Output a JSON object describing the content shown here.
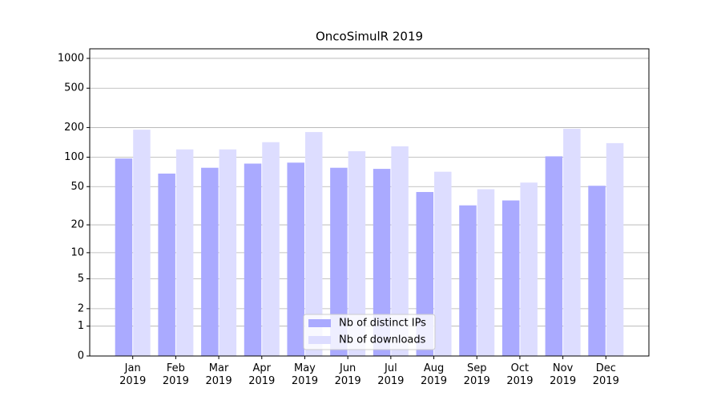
{
  "chart_data": {
    "type": "bar",
    "title": "OncoSimulR 2019",
    "categories": [
      "Jan\n2019",
      "Feb\n2019",
      "Mar\n2019",
      "Apr\n2019",
      "May\n2019",
      "Jun\n2019",
      "Jul\n2019",
      "Aug\n2019",
      "Sep\n2019",
      "Oct\n2019",
      "Nov\n2019",
      "Dec\n2019"
    ],
    "series": [
      {
        "name": "Nb of distinct IPs",
        "color": "#aaaaff",
        "values": [
          97,
          68,
          78,
          86,
          88,
          78,
          76,
          44,
          32,
          36,
          102,
          51
        ]
      },
      {
        "name": "Nb of downloads",
        "color": "#ddddff",
        "values": [
          190,
          120,
          120,
          142,
          180,
          115,
          129,
          71,
          47,
          55,
          194,
          139
        ]
      }
    ],
    "yscale": "log1p",
    "ylim": [
      0,
      1249
    ],
    "yticks": [
      0,
      1,
      2,
      5,
      10,
      20,
      50,
      100,
      200,
      500,
      1000
    ],
    "grid": true,
    "legend": "lower center"
  }
}
